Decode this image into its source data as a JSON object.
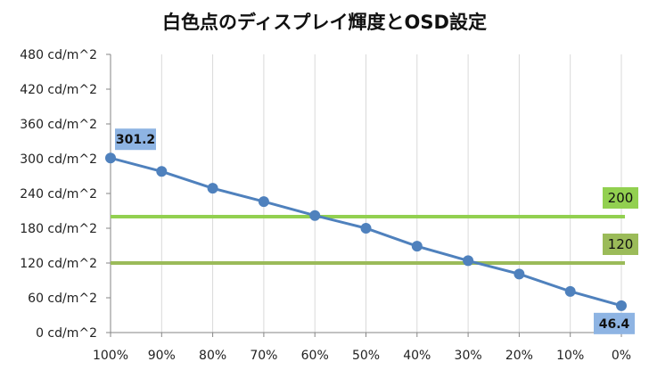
{
  "chart_data": {
    "type": "line",
    "title": "白色点のディスプレイ輝度とOSD設定",
    "categories": [
      "100%",
      "90%",
      "80%",
      "70%",
      "60%",
      "50%",
      "40%",
      "30%",
      "20%",
      "10%",
      "0%"
    ],
    "series": [
      {
        "values": [
          301.2,
          278,
          249,
          226,
          202,
          180,
          149,
          124,
          101,
          71,
          46.4
        ]
      }
    ],
    "data_labels": [
      {
        "index": 0,
        "text": "301.2"
      },
      {
        "index": 10,
        "text": "46.4"
      }
    ],
    "reference_lines": [
      {
        "value": 200,
        "label": "200",
        "color": "#92d050"
      },
      {
        "value": 120,
        "label": "120",
        "color": "#9bbb59"
      }
    ],
    "y_tick_labels": [
      "0 cd/m^2",
      "60 cd/m^2",
      "120 cd/m^2",
      "180 cd/m^2",
      "240 cd/m^2",
      "300 cd/m^2",
      "360 cd/m^2",
      "420 cd/m^2",
      "480 cd/m^2"
    ],
    "ylim": [
      0,
      480
    ],
    "y_step": 60,
    "grid": "vertical",
    "legend": "none",
    "line_color": "#4f81bd",
    "label_bg": "#8eb4e3",
    "grid_color": "#d9d9d9",
    "axis_color": "#868686"
  }
}
